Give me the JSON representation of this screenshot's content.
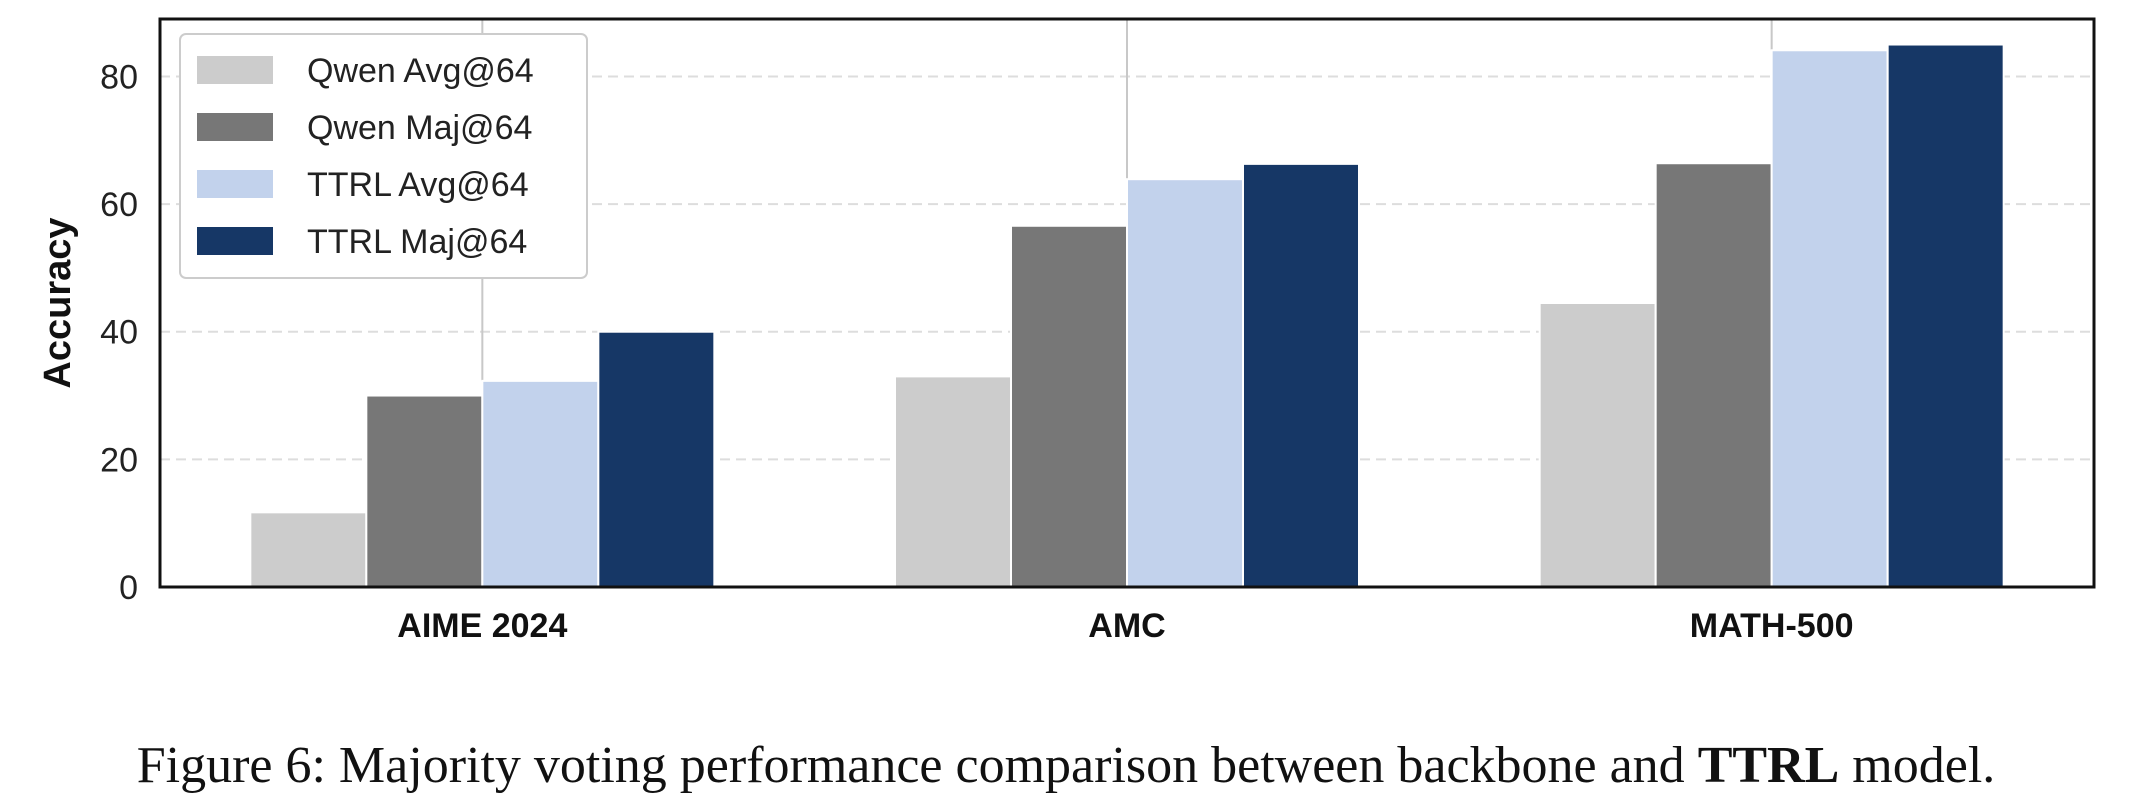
{
  "chart_data": {
    "type": "bar",
    "categories": [
      "AIME 2024",
      "AMC",
      "MATH-500"
    ],
    "series": [
      {
        "name": "Qwen Avg@64",
        "color": "#cccccc",
        "values": [
          11.7,
          33.0,
          44.5
        ]
      },
      {
        "name": "Qwen Maj@64",
        "color": "#777777",
        "values": [
          30.0,
          56.6,
          66.4
        ]
      },
      {
        "name": "TTRL Avg@64",
        "color": "#c2d2ec",
        "values": [
          32.3,
          63.9,
          84.1
        ]
      },
      {
        "name": "TTRL Maj@64",
        "color": "#163766",
        "values": [
          40.0,
          66.3,
          85.0
        ]
      }
    ],
    "xlabel": "",
    "ylabel": "Accuracy",
    "ylim": [
      0,
      89
    ],
    "yticks": [
      0,
      20,
      40,
      60,
      80
    ],
    "grid": "horizontal dashed",
    "legend_position": "top-left"
  },
  "caption": {
    "prefix": "Figure 6: Majority voting performance comparison between backbone and ",
    "bold": "TTRL",
    "suffix": " model."
  }
}
